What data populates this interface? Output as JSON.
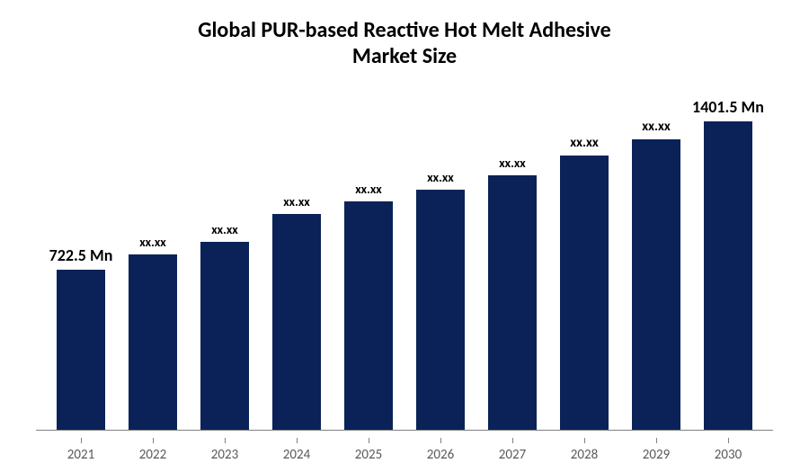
{
  "chart": {
    "type": "bar",
    "title_line1": "Global PUR-based Reactive Hot Melt Adhesive",
    "title_line2": "Market Size",
    "title_fontsize": 24,
    "title_color": "#000000",
    "background_color": "#ffffff",
    "bar_color": "#0a2258",
    "axis_line_color": "#808080",
    "xlabel_color": "#595959",
    "xlabel_fontsize": 15,
    "bar_label_color": "#000000",
    "bar_width_ratio": 0.68,
    "y_max": 1500,
    "categories": [
      "2021",
      "2022",
      "2023",
      "2024",
      "2025",
      "2026",
      "2027",
      "2028",
      "2029",
      "2030"
    ],
    "values": [
      722.5,
      790,
      845,
      970,
      1030,
      1080,
      1145,
      1235,
      1310,
      1401.5
    ],
    "value_labels": [
      "722.5 Mn",
      "xx.xx",
      "xx.xx",
      "xx.xx",
      "xx.xx",
      "xx.xx",
      "xx.xx",
      "xx.xx",
      "xx.xx",
      "1401.5 Mn"
    ],
    "label_fontsizes": [
      18,
      14,
      14,
      14,
      14,
      14,
      14,
      15,
      15,
      18
    ]
  }
}
